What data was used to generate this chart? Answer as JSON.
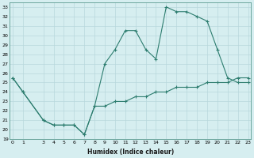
{
  "xlabel": "Humidex (Indice chaleur)",
  "ylabel": "",
  "x_hours": [
    0,
    1,
    3,
    4,
    5,
    6,
    7,
    8,
    9,
    10,
    11,
    12,
    13,
    14,
    15,
    16,
    17,
    18,
    19,
    20,
    21,
    22,
    23
  ],
  "y_values": [
    25.5,
    24.0,
    21.0,
    20.5,
    20.5,
    20.5,
    19.5,
    22.5,
    27.0,
    28.5,
    30.5,
    30.5,
    28.5,
    27.5,
    33.0,
    32.5,
    32.5,
    32.0,
    31.5,
    28.5,
    25.5,
    25.0,
    25.0
  ],
  "x_hours2": [
    0,
    1,
    3,
    4,
    5,
    6,
    7,
    8,
    9,
    10,
    11,
    12,
    13,
    14,
    15,
    16,
    17,
    18,
    19,
    20,
    21,
    22,
    23
  ],
  "y_values2": [
    25.5,
    24.0,
    21.0,
    20.5,
    20.5,
    20.5,
    19.5,
    22.5,
    22.5,
    23.0,
    23.0,
    23.5,
    23.5,
    24.0,
    24.0,
    24.5,
    24.5,
    24.5,
    25.0,
    25.0,
    25.0,
    25.5,
    25.5
  ],
  "line_color": "#2d7d6f",
  "bg_color": "#d6eef0",
  "grid_color": "#b8d8dc",
  "ylim": [
    19,
    33.5
  ],
  "xlim": [
    -0.3,
    23.3
  ],
  "yticks": [
    19,
    20,
    21,
    22,
    23,
    24,
    25,
    26,
    27,
    28,
    29,
    30,
    31,
    32,
    33
  ],
  "xticks": [
    0,
    1,
    3,
    4,
    5,
    6,
    7,
    8,
    9,
    10,
    11,
    12,
    13,
    14,
    15,
    16,
    17,
    18,
    19,
    20,
    21,
    22,
    23
  ]
}
